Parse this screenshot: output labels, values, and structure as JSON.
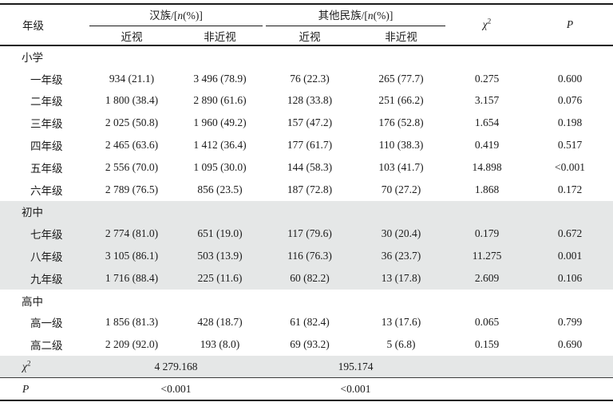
{
  "colors": {
    "row_shading": "#e5e7e7",
    "border": "#1a1a1a",
    "text": "#1b1b1b"
  },
  "table": {
    "header": {
      "grade": "年级",
      "han_group": {
        "pre": "汉族/[",
        "n": "n",
        "post": "(%)]"
      },
      "other_group": {
        "pre": "其他民族/[",
        "n": "n",
        "post": "(%)]"
      },
      "sub_myopia": "近视",
      "sub_non_myopia": "非近视",
      "chi": {
        "base": "χ",
        "sup": "2"
      },
      "p": "P"
    },
    "rows": [
      {
        "type": "section",
        "label": "小学",
        "shaded": false
      },
      {
        "type": "data",
        "label": "一年级",
        "shaded": false,
        "cells": [
          "934 (21.1)",
          "3 496 (78.9)",
          "76 (22.3)",
          "265 (77.7)",
          "0.275",
          "0.600"
        ]
      },
      {
        "type": "data",
        "label": "二年级",
        "shaded": false,
        "cells": [
          "1 800 (38.4)",
          "2 890 (61.6)",
          "128 (33.8)",
          "251 (66.2)",
          "3.157",
          "0.076"
        ]
      },
      {
        "type": "data",
        "label": "三年级",
        "shaded": false,
        "cells": [
          "2 025 (50.8)",
          "1 960 (49.2)",
          "157 (47.2)",
          "176 (52.8)",
          "1.654",
          "0.198"
        ]
      },
      {
        "type": "data",
        "label": "四年级",
        "shaded": false,
        "cells": [
          "2 465 (63.6)",
          "1 412 (36.4)",
          "177 (61.7)",
          "110 (38.3)",
          "0.419",
          "0.517"
        ]
      },
      {
        "type": "data",
        "label": "五年级",
        "shaded": false,
        "cells": [
          "2 556 (70.0)",
          "1 095 (30.0)",
          "144 (58.3)",
          "103 (41.7)",
          "14.898",
          "<0.001"
        ]
      },
      {
        "type": "data",
        "label": "六年级",
        "shaded": false,
        "cells": [
          "2 789 (76.5)",
          "856 (23.5)",
          "187 (72.8)",
          "70 (27.2)",
          "1.868",
          "0.172"
        ]
      },
      {
        "type": "section",
        "label": "初中",
        "shaded": true
      },
      {
        "type": "data",
        "label": "七年级",
        "shaded": true,
        "cells": [
          "2 774 (81.0)",
          "651 (19.0)",
          "117 (79.6)",
          "30 (20.4)",
          "0.179",
          "0.672"
        ]
      },
      {
        "type": "data",
        "label": "八年级",
        "shaded": true,
        "cells": [
          "3 105 (86.1)",
          "503 (13.9)",
          "116 (76.3)",
          "36 (23.7)",
          "11.275",
          "0.001"
        ]
      },
      {
        "type": "data",
        "label": "九年级",
        "shaded": true,
        "cells": [
          "1 716 (88.4)",
          "225 (11.6)",
          "60 (82.2)",
          "13 (17.8)",
          "2.609",
          "0.106"
        ]
      },
      {
        "type": "section",
        "label": "高中",
        "shaded": false
      },
      {
        "type": "data",
        "label": "高一级",
        "shaded": false,
        "cells": [
          "1 856 (81.3)",
          "428 (18.7)",
          "61 (82.4)",
          "13 (17.6)",
          "0.065",
          "0.799"
        ]
      },
      {
        "type": "data",
        "label": "高二级",
        "shaded": false,
        "cells": [
          "2 209 (92.0)",
          "193 (8.0)",
          "69 (93.2)",
          "5 (6.8)",
          "0.159",
          "0.690"
        ]
      },
      {
        "type": "summary",
        "label_base": "χ",
        "label_sup": "2",
        "han_value": "4 279.168",
        "other_value": "195.174",
        "shaded": true,
        "rule_below": true
      },
      {
        "type": "summary",
        "label_base": "P",
        "label_sup": "",
        "han_value": "<0.001",
        "other_value": "<0.001",
        "shaded": false,
        "rule_below": false
      }
    ]
  }
}
